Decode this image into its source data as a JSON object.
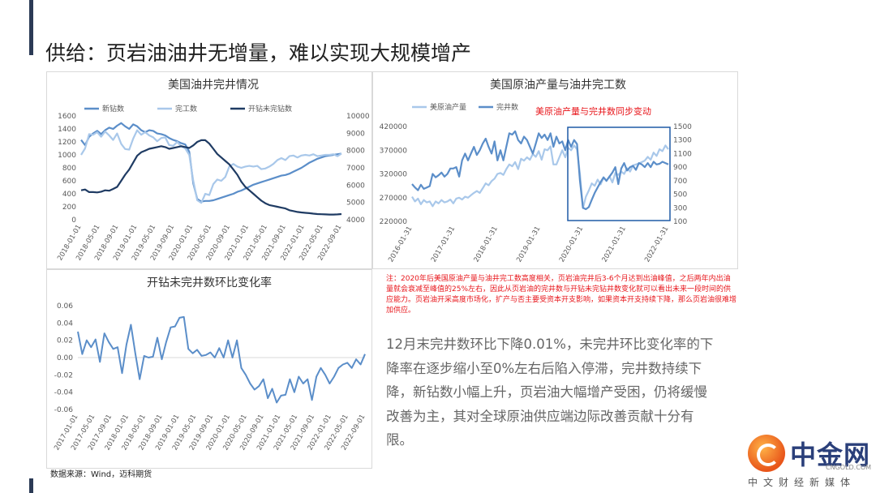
{
  "page": {
    "title": "供给：页岩油油井无增量，难以实现大规模增产",
    "note": "注：2020年后美国原油产量与油井完工数高度相关，页岩油完井后3-6个月达到出油峰值，之后两年内出油量就会衰减至峰值的25%左右，因此从页岩油的完井数与开钻未完钻井数变化就可以看出未来一段时间的供应能力。页岩油开采高度市场化，扩产与否主要受资本开支影响，如果资本开支持续下降，那么页岩油很难增加供应。",
    "body": "12月末完井数环比下降0.01%，未完井环比变化率的下降率在逐步缩小至0%左右后陷入停滞，完井数持续下降，新钻数小幅上升，页岩油大幅增产受困，仍将缓慢改善为主，其对全球原油供应端边际改善贡献十分有限。",
    "source": "数据来源：Wind，迈科期货",
    "logo_cn": "中金网",
    "logo_en": "CNGOLD.COM",
    "logo_sub": "中文财经新媒体"
  },
  "colors": {
    "dark_navy": "#1f3b63",
    "mid_blue": "#5b8ec9",
    "light_blue": "#a9c8ea",
    "red": "#e8161b",
    "accent": "#2b3a55"
  },
  "chart_data": [
    {
      "type": "line",
      "title": "美国油井完井情况",
      "x_ticks": [
        "2018-01-01",
        "2018-05-01",
        "2018-09-01",
        "2019-01-01",
        "2019-05-01",
        "2019-09-01",
        "2020-01-01",
        "2020-05-01",
        "2020-09-01",
        "2021-01-01",
        "2021-05-01",
        "2021-09-01",
        "2022-01-01",
        "2022-05-01",
        "2022-09-01"
      ],
      "ylim": [
        0,
        1600
      ],
      "y_ticks": [
        0,
        200,
        400,
        600,
        800,
        1000,
        1200,
        1400,
        1600
      ],
      "y2lim": [
        4000,
        10000
      ],
      "y2_ticks": [
        4000,
        5000,
        6000,
        7000,
        8000,
        9000,
        10000
      ],
      "legend_position": "top",
      "series": [
        {
          "name": "新钻数",
          "axis": "left",
          "color": "#5b8ec9",
          "values": [
            1230,
            1150,
            1280,
            1330,
            1370,
            1320,
            1380,
            1420,
            1400,
            1450,
            1490,
            1440,
            1400,
            1470,
            1440,
            1380,
            1350,
            1380,
            1370,
            1330,
            1320,
            1300,
            1260,
            1230,
            1210,
            1180,
            1160,
            1050,
            560,
            320,
            280,
            290,
            290,
            300,
            320,
            340,
            360,
            380,
            400,
            430,
            450,
            480,
            510,
            540,
            560,
            580,
            600,
            620,
            640,
            660,
            680,
            690,
            710,
            740,
            770,
            800,
            840,
            880,
            910,
            940,
            960,
            980,
            990,
            1000,
            1010,
            1020
          ]
        },
        {
          "name": "完工数",
          "axis": "left",
          "color": "#a9c8ea",
          "values": [
            1000,
            1100,
            1320,
            1310,
            1350,
            1280,
            1360,
            1300,
            1230,
            1330,
            1170,
            1090,
            1080,
            1250,
            1380,
            1310,
            1350,
            1300,
            1270,
            1210,
            1260,
            1270,
            1150,
            1140,
            1200,
            1130,
            1100,
            1000,
            600,
            300,
            260,
            400,
            380,
            550,
            620,
            600,
            660,
            820,
            860,
            820,
            800,
            820,
            830,
            820,
            830,
            780,
            790,
            820,
            860,
            920,
            950,
            920,
            980,
            990,
            960,
            990,
            1000,
            990,
            1010,
            980,
            990,
            1000,
            1000,
            1010,
            980,
            1020
          ]
        },
        {
          "name": "开钻未完钻数",
          "axis": "right",
          "color": "#1f3b63",
          "values": [
            5700,
            5750,
            5600,
            5600,
            5580,
            5620,
            5700,
            5680,
            5780,
            5900,
            6250,
            6600,
            6900,
            7300,
            7700,
            7900,
            8000,
            8100,
            8150,
            8200,
            8250,
            8200,
            8100,
            8150,
            8200,
            8250,
            8200,
            8150,
            8300,
            8500,
            8600,
            8600,
            8400,
            8100,
            7800,
            7600,
            7400,
            7200,
            6900,
            6600,
            6200,
            5900,
            5700,
            5500,
            5300,
            5100,
            4950,
            4850,
            4800,
            4750,
            4700,
            4650,
            4550,
            4500,
            4450,
            4420,
            4400,
            4380,
            4350,
            4330,
            4320,
            4310,
            4300,
            4300,
            4310,
            4330
          ]
        }
      ]
    },
    {
      "type": "line",
      "title": "美国原油产量与油井完工数",
      "annotation": "美原油产量与完井数同步变动",
      "x_ticks": [
        "2016-01-31",
        "2017-01-31",
        "2018-01-31",
        "2019-01-31",
        "2020-01-31",
        "2021-01-31",
        "2022-01-31"
      ],
      "ylim": [
        220000,
        420000
      ],
      "y_ticks": [
        220000,
        270000,
        320000,
        370000,
        420000
      ],
      "y2lim": [
        100,
        1500
      ],
      "y2_ticks": [
        100,
        300,
        500,
        700,
        900,
        1100,
        1300,
        1500
      ],
      "legend_position": "top-left",
      "series": [
        {
          "name": "美原油产量",
          "axis": "left",
          "color": "#a9c8ea",
          "values": [
            272000,
            262000,
            268000,
            256000,
            265000,
            260000,
            262000,
            252000,
            262000,
            258000,
            265000,
            260000,
            262000,
            266000,
            258000,
            268000,
            270000,
            266000,
            272000,
            270000,
            275000,
            280000,
            284000,
            280000,
            290000,
            300000,
            296000,
            305000,
            310000,
            320000,
            322000,
            318000,
            330000,
            340000,
            336000,
            345000,
            330000,
            352000,
            348000,
            355000,
            350000,
            362000,
            356000,
            368000,
            350000,
            372000,
            370000,
            378000,
            340000,
            340000,
            355000,
            370000,
            355000,
            375000,
            370000,
            380000,
            372000,
            320000,
            248000,
            272000,
            285000,
            300000,
            295000,
            308000,
            298000,
            312000,
            305000,
            315000,
            302000,
            322000,
            318000,
            325000,
            320000,
            332000,
            325000,
            338000,
            340000,
            342000,
            345000,
            348000,
            356000,
            350000,
            365000,
            358000,
            372000,
            368000,
            380000,
            372000
          ]
        },
        {
          "name": "完井数",
          "axis": "right",
          "color": "#5b8ec9",
          "values": [
            650,
            600,
            560,
            640,
            580,
            600,
            620,
            800,
            750,
            780,
            820,
            760,
            800,
            880,
            880,
            900,
            760,
            1000,
            1100,
            1000,
            1100,
            1200,
            1080,
            1150,
            1250,
            1320,
            1200,
            1100,
            1280,
            1000,
            1150,
            1000,
            1200,
            1400,
            1380,
            1430,
            1300,
            1250,
            1350,
            1300,
            1200,
            1100,
            1250,
            1400,
            1330,
            1380,
            1300,
            1400,
            1200,
            1350,
            1250,
            1280,
            1150,
            1300,
            1200,
            1300,
            1240,
            700,
            300,
            280,
            310,
            420,
            520,
            600,
            680,
            750,
            700,
            760,
            820,
            900,
            650,
            880,
            960,
            850,
            900,
            920,
            860,
            960,
            940,
            900,
            960,
            900,
            980,
            940,
            950,
            980,
            960,
            940
          ]
        }
      ]
    },
    {
      "type": "line",
      "title": "开钻未完井数环比变化率",
      "x_ticks": [
        "2017-01-01",
        "2017-05-01",
        "2017-09-01",
        "2018-01-01",
        "2018-05-01",
        "2018-09-01",
        "2019-01-01",
        "2019-05-01",
        "2019-09-01",
        "2020-01-01",
        "2020-05-01",
        "2020-09-01",
        "2021-01-01",
        "2021-05-01",
        "2021-09-01",
        "2022-01-01",
        "2022-05-01",
        "2022-09-01"
      ],
      "ylim": [
        -0.06,
        0.06
      ],
      "y_ticks": [
        -0.06,
        -0.04,
        -0.02,
        0.0,
        0.02,
        0.04,
        0.06
      ],
      "legend_position": "none",
      "series": [
        {
          "name": "",
          "axis": "left",
          "color": "#5b8ec9",
          "values": [
            0.03,
            0.004,
            0.02,
            0.012,
            0.021,
            -0.005,
            0.028,
            0.018,
            0.01,
            0.012,
            -0.018,
            0.015,
            0.038,
            0.005,
            -0.025,
            0.002,
            0.0,
            0.001,
            0.023,
            -0.002,
            0.018,
            0.035,
            0.036,
            0.046,
            0.047,
            0.01,
            0.005,
            0.009,
            0.002,
            0.003,
            0.006,
            0.0,
            0.011,
            0.0,
            0.02,
            0.0,
            0.02,
            -0.012,
            -0.02,
            -0.03,
            -0.037,
            -0.033,
            -0.025,
            -0.047,
            -0.036,
            -0.052,
            -0.044,
            -0.043,
            -0.025,
            -0.04,
            -0.022,
            -0.03,
            -0.025,
            -0.049,
            -0.022,
            -0.012,
            -0.02,
            -0.03,
            -0.022,
            -0.012,
            -0.008,
            -0.006,
            -0.012,
            -0.002,
            -0.008,
            0.004
          ]
        }
      ]
    }
  ]
}
